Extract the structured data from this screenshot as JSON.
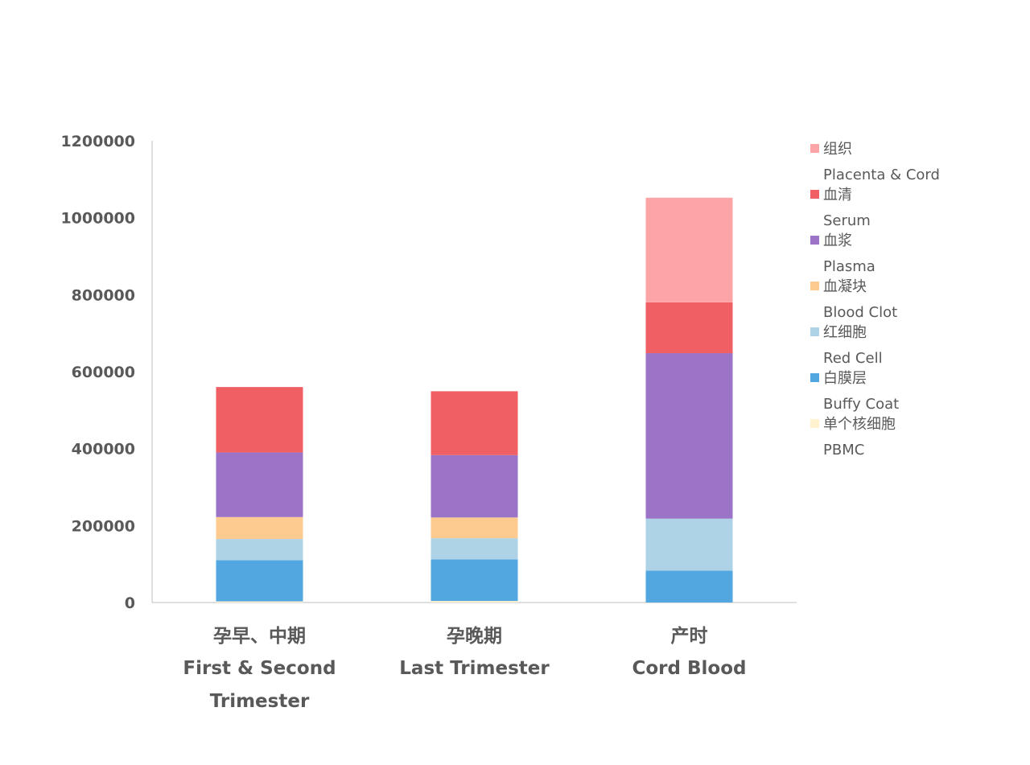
{
  "chart_data": {
    "type": "bar",
    "stacked": true,
    "title": "",
    "xlabel": "",
    "ylabel": "",
    "ylim": [
      0,
      1200000
    ],
    "yticks": [
      0,
      200000,
      400000,
      600000,
      800000,
      1000000,
      1200000
    ],
    "grid": false,
    "legend_position": "right",
    "categories": [
      {
        "zh": "孕早、中期",
        "en_lines": [
          "First & Second",
          "Trimester"
        ]
      },
      {
        "zh": "孕晚期",
        "en_lines": [
          "Last Trimester"
        ]
      },
      {
        "zh": "产时",
        "en_lines": [
          "Cord Blood"
        ]
      }
    ],
    "series": [
      {
        "name_zh": "单个核细胞",
        "name_en": "PBMC",
        "color": "#FFF2CC",
        "values": [
          3000,
          4000,
          0
        ]
      },
      {
        "name_zh": "白膜层",
        "name_en": "Buffy Coat",
        "color": "#52A7E0",
        "values": [
          107000,
          108000,
          83000
        ]
      },
      {
        "name_zh": "红细胞",
        "name_en": "Red Cell",
        "color": "#AED3E6",
        "values": [
          55000,
          55000,
          135000
        ]
      },
      {
        "name_zh": "血凝块",
        "name_en": "Blood Clot",
        "color": "#FDCB8F",
        "values": [
          57000,
          54000,
          0
        ]
      },
      {
        "name_zh": "血浆",
        "name_en": "Plasma",
        "color": "#9B73C7",
        "values": [
          168000,
          162000,
          430000
        ]
      },
      {
        "name_zh": "血清",
        "name_en": "Serum",
        "color": "#EF5F64",
        "values": [
          170000,
          166000,
          132000
        ]
      },
      {
        "name_zh": "组织",
        "name_en": "Placenta & Cord",
        "color": "#FCA4A6",
        "values": [
          0,
          0,
          272000
        ]
      }
    ],
    "legend_order": [
      6,
      5,
      4,
      3,
      2,
      1,
      0
    ]
  },
  "colors": {
    "axis": "#BFBFBF",
    "text": "#595959"
  }
}
